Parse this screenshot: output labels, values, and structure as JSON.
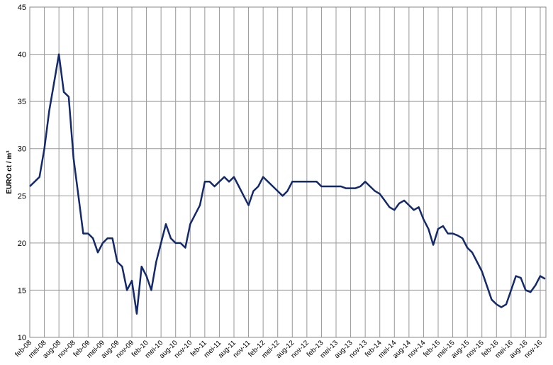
{
  "chart_data": {
    "type": "line",
    "y_label": "EURO ct / m³",
    "categories": [
      "feb-08",
      null,
      null,
      "mei-08",
      null,
      null,
      "aug-08",
      null,
      null,
      "nov-08",
      null,
      null,
      "feb-09",
      null,
      null,
      "mei-09",
      null,
      null,
      "aug-09",
      null,
      null,
      "nov-09",
      null,
      null,
      "feb-10",
      null,
      null,
      "mei-10",
      null,
      null,
      "aug-10",
      null,
      null,
      "nov-10",
      null,
      null,
      "feb-11",
      null,
      null,
      "mei-11",
      null,
      null,
      "aug-11",
      null,
      null,
      "nov-11",
      null,
      null,
      "feb-12",
      null,
      null,
      "mei-12",
      null,
      null,
      "aug-12",
      null,
      null,
      "nov-12",
      null,
      null,
      "feb-13",
      null,
      null,
      "mei-13",
      null,
      null,
      "aug-13",
      null,
      null,
      "nov-13",
      null,
      null,
      "feb-14",
      null,
      null,
      "mei-14",
      null,
      null,
      "aug-14",
      null,
      null,
      "nov-14",
      null,
      null,
      "feb-15",
      null,
      null,
      "mei-15",
      null,
      null,
      "aug-15",
      null,
      null,
      "nov-15",
      null,
      null,
      "feb-16",
      null,
      null,
      "mei-16",
      null,
      null,
      "aug-16",
      null,
      null,
      "nov-16",
      null
    ],
    "series": [
      {
        "color": "#13296a",
        "values": [
          26,
          26.5,
          27,
          30,
          34,
          37,
          40,
          36,
          35.5,
          29,
          25,
          21,
          21,
          20.5,
          19,
          20,
          20.5,
          20.5,
          18,
          17.5,
          15,
          16,
          12.5,
          17.5,
          16.5,
          15,
          18,
          20,
          22,
          20.5,
          20,
          20,
          19.5,
          22,
          23,
          24,
          26.5,
          26.5,
          26,
          26.5,
          27,
          26.5,
          27,
          26,
          25,
          24,
          25.5,
          26,
          27,
          26.5,
          26,
          25.5,
          25,
          25.5,
          26.5,
          26.5,
          26.5,
          26.5,
          26.5,
          26.5,
          26,
          26,
          26,
          26,
          26,
          25.8,
          25.8,
          25.8,
          26,
          26.5,
          26,
          25.5,
          25.2,
          24.5,
          23.8,
          23.5,
          24.2,
          24.5,
          24,
          23.5,
          23.8,
          22.5,
          21.5,
          19.8,
          21.5,
          21.8,
          21,
          21,
          20.8,
          20.5,
          19.5,
          19,
          18,
          17,
          15.5,
          14,
          13.5,
          13.2,
          13.5,
          15,
          16.5,
          16.3,
          15,
          14.8,
          15.5,
          16.5,
          16.2
        ]
      }
    ],
    "ylim": [
      10,
      45
    ],
    "yticks": [
      10,
      15,
      20,
      25,
      30,
      35,
      40,
      45
    ],
    "grid": true
  }
}
